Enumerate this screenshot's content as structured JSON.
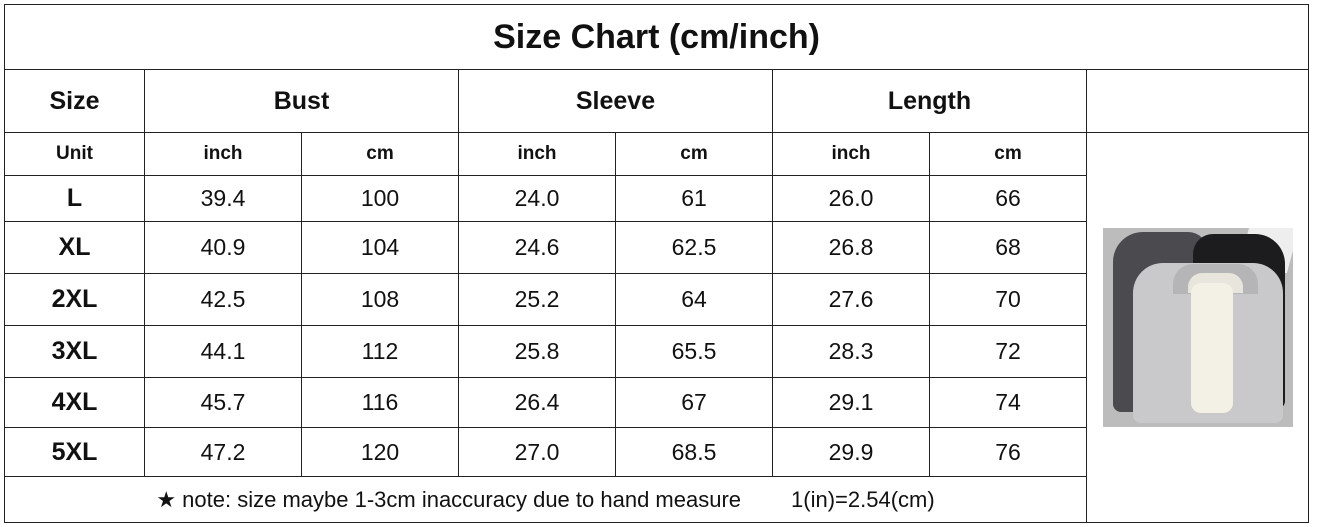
{
  "title": "Size Chart (cm/inch)",
  "headers": {
    "size": "Size",
    "bust": "Bust",
    "sleeve": "Sleeve",
    "length": "Length"
  },
  "units": {
    "label": "Unit",
    "inch": "inch",
    "cm": "cm"
  },
  "rows": [
    {
      "size": "L",
      "bust_in": "39.4",
      "bust_cm": "100",
      "sleeve_in": "24.0",
      "sleeve_cm": "61",
      "length_in": "26.0",
      "length_cm": "66"
    },
    {
      "size": "XL",
      "bust_in": "40.9",
      "bust_cm": "104",
      "sleeve_in": "24.6",
      "sleeve_cm": "62.5",
      "length_in": "26.8",
      "length_cm": "68"
    },
    {
      "size": "2XL",
      "bust_in": "42.5",
      "bust_cm": "108",
      "sleeve_in": "25.2",
      "sleeve_cm": "64",
      "length_in": "27.6",
      "length_cm": "70"
    },
    {
      "size": "3XL",
      "bust_in": "44.1",
      "bust_cm": "112",
      "sleeve_in": "25.8",
      "sleeve_cm": "65.5",
      "length_in": "28.3",
      "length_cm": "72"
    },
    {
      "size": "4XL",
      "bust_in": "45.7",
      "bust_cm": "116",
      "sleeve_in": "26.4",
      "sleeve_cm": "67",
      "length_in": "29.1",
      "length_cm": "74"
    },
    {
      "size": "5XL",
      "bust_in": "47.2",
      "bust_cm": "120",
      "sleeve_in": "27.0",
      "sleeve_cm": "68.5",
      "length_in": "29.9",
      "length_cm": "76"
    }
  ],
  "note": {
    "text": "★ note: size maybe 1-3cm inaccuracy due to hand measure",
    "conversion": "1(in)=2.54(cm)"
  },
  "product_image": "gray-black-fleece-lined-hoodies-photo"
}
